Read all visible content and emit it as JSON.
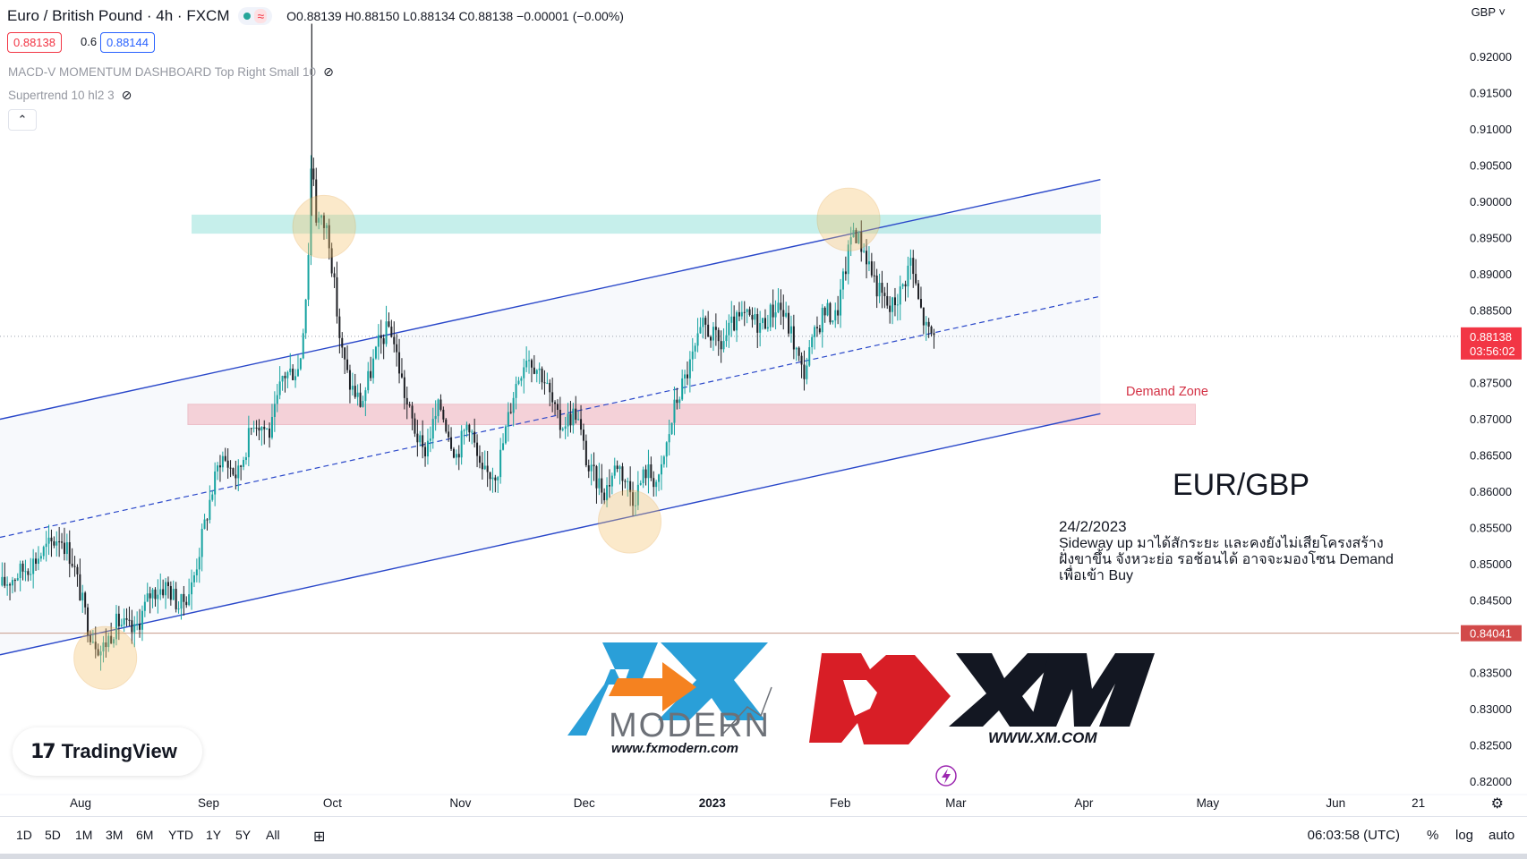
{
  "header": {
    "symbol": "Euro / British Pound · 4h · FXCM",
    "ohlc": "O0.88139 H0.88150 L0.88134 C0.88138 −0.00001 (−0.00%)",
    "bid": "0.88138",
    "spread": "0.6",
    "ask": "0.88144",
    "indicator_1": "MACD-V MOMENTUM DASHBOARD Top Right Small 10",
    "indicator_2": "Supertrend 10 hl2 3",
    "currency": "GBP"
  },
  "price_axis": {
    "ticks": [
      "0.92000",
      "0.91500",
      "0.91000",
      "0.90500",
      "0.90000",
      "0.89500",
      "0.89000",
      "0.88500",
      "0.88000",
      "0.87500",
      "0.87000",
      "0.86500",
      "0.86000",
      "0.85500",
      "0.85000",
      "0.84500",
      "0.84000",
      "0.83500",
      "0.83000",
      "0.82500",
      "0.82000"
    ],
    "last_price_label": "0.88138",
    "countdown_label": "03:56:02",
    "line_price_label": "0.84041",
    "last_price_color": "#f23645",
    "line_price_color": "#d24a4a"
  },
  "time_axis": {
    "labels": [
      "Aug",
      "Sep",
      "Oct",
      "Nov",
      "Dec",
      "2023",
      "Feb",
      "Mar",
      "Apr",
      "May",
      "Jun",
      "21"
    ]
  },
  "chart_data": {
    "type": "candlestick",
    "title": "EUR/GBP",
    "interval": "4h",
    "ylim": [
      0.818,
      0.9245
    ],
    "x_ticks": [
      "Aug",
      "Sep",
      "Oct",
      "Nov",
      "Dec",
      "2023",
      "Feb",
      "Mar",
      "Apr",
      "May",
      "Jun",
      "21"
    ],
    "x_tick_dates": [
      "2022-08-01",
      "2022-09-01",
      "2022-10-01",
      "2022-11-01",
      "2022-12-01",
      "2023-01-01",
      "2023-02-01",
      "2023-03-01",
      "2023-04-01",
      "2023-05-01",
      "2023-06-01",
      "2023-06-21"
    ],
    "path": [
      [
        "2022-07-13",
        0.847
      ],
      [
        "2022-07-20",
        0.85
      ],
      [
        "2022-07-27",
        0.854
      ],
      [
        "2022-07-30",
        0.8505
      ],
      [
        "2022-08-03",
        0.841
      ],
      [
        "2022-08-06",
        0.838
      ],
      [
        "2022-08-10",
        0.842
      ],
      [
        "2022-08-14",
        0.8405
      ],
      [
        "2022-08-18",
        0.846
      ],
      [
        "2022-08-22",
        0.847
      ],
      [
        "2022-08-25",
        0.844
      ],
      [
        "2022-08-28",
        0.847
      ],
      [
        "2022-09-01",
        0.858
      ],
      [
        "2022-09-04",
        0.865
      ],
      [
        "2022-09-08",
        0.862
      ],
      [
        "2022-09-12",
        0.87
      ],
      [
        "2022-09-16",
        0.868
      ],
      [
        "2022-09-19",
        0.876
      ],
      [
        "2022-09-23",
        0.877
      ],
      [
        "2022-09-25",
        0.89
      ],
      [
        "2022-09-26",
        0.908
      ],
      [
        "2022-09-27",
        0.898
      ],
      [
        "2022-09-30",
        0.896
      ],
      [
        "2022-10-03",
        0.88
      ],
      [
        "2022-10-05",
        0.875
      ],
      [
        "2022-10-08",
        0.872
      ],
      [
        "2022-10-12",
        0.88
      ],
      [
        "2022-10-15",
        0.883
      ],
      [
        "2022-10-19",
        0.872
      ],
      [
        "2022-10-23",
        0.865
      ],
      [
        "2022-10-27",
        0.872
      ],
      [
        "2022-10-31",
        0.865
      ],
      [
        "2022-11-03",
        0.87
      ],
      [
        "2022-11-06",
        0.862
      ],
      [
        "2022-11-10",
        0.863
      ],
      [
        "2022-11-14",
        0.874
      ],
      [
        "2022-11-17",
        0.879
      ],
      [
        "2022-11-21",
        0.876
      ],
      [
        "2022-11-25",
        0.869
      ],
      [
        "2022-11-29",
        0.871
      ],
      [
        "2022-12-02",
        0.863
      ],
      [
        "2022-12-06",
        0.86
      ],
      [
        "2022-12-09",
        0.864
      ],
      [
        "2022-12-13",
        0.859
      ],
      [
        "2022-12-16",
        0.863
      ],
      [
        "2022-12-19",
        0.861
      ],
      [
        "2022-12-23",
        0.872
      ],
      [
        "2022-12-27",
        0.878
      ],
      [
        "2022-12-30",
        0.883
      ],
      [
        "2023-01-03",
        0.88
      ],
      [
        "2023-01-06",
        0.883
      ],
      [
        "2023-01-09",
        0.884
      ],
      [
        "2023-01-13",
        0.883
      ],
      [
        "2023-01-17",
        0.886
      ],
      [
        "2023-01-20",
        0.882
      ],
      [
        "2023-01-23",
        0.876
      ],
      [
        "2023-01-25",
        0.88
      ],
      [
        "2023-01-28",
        0.885
      ],
      [
        "2023-01-31",
        0.884
      ],
      [
        "2023-02-03",
        0.893
      ],
      [
        "2023-02-04",
        0.8965
      ],
      [
        "2023-02-07",
        0.893
      ],
      [
        "2023-02-10",
        0.888
      ],
      [
        "2023-02-13",
        0.885
      ],
      [
        "2023-02-16",
        0.888
      ],
      [
        "2023-02-18",
        0.892
      ],
      [
        "2023-02-20",
        0.886
      ],
      [
        "2023-02-22",
        0.882
      ],
      [
        "2023-02-24",
        0.8814
      ]
    ]
  },
  "annotations": {
    "demand_zone_label": "Demand Zone",
    "pair_label": "EUR/GBP",
    "note_date": "24/2/2023",
    "note_line1": "Sideway up มาได้สักระยะ และคงยังไม่เสียโครงสร้าง",
    "note_line2": "ฝั่งขาขึ้น จังหวะย่อ รอช้อนได้ อาจจะมองโซน Demand",
    "note_line3": "เพื่อเข้า Buy",
    "resistance_zone_color": "#5fd3c8",
    "demand_zone_color": "#f08a96",
    "channel_color": "#2947c9",
    "circle_color": "#f5c26b",
    "candle_up_color": "#16a3a0",
    "candle_down_color": "#1d1f24"
  },
  "logos": {
    "fx_modern_word": "MODERN",
    "fx_modern_url": "www.fxmodern.com",
    "xm_url": "WWW.XM.COM",
    "tradingview": "TradingView"
  },
  "bottom_bar": {
    "ranges": [
      "1D",
      "5D",
      "1M",
      "3M",
      "6M",
      "YTD",
      "1Y",
      "5Y",
      "All"
    ],
    "time": "06:03:58 (UTC)",
    "percent": "%",
    "log": "log",
    "auto": "auto"
  }
}
